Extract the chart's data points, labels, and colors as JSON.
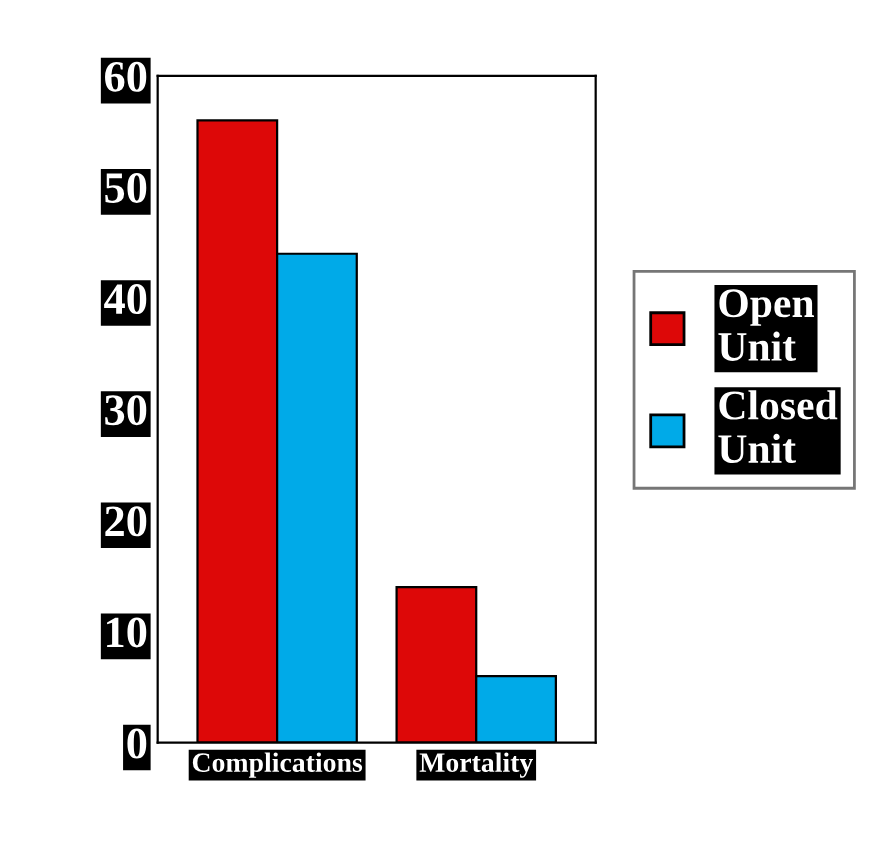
{
  "chart_data": {
    "type": "bar",
    "categories": [
      "Complications",
      "Mortality"
    ],
    "series": [
      {
        "name": "Open Unit",
        "color": "#dd0808",
        "values": [
          56,
          14
        ]
      },
      {
        "name": "Closed Unit",
        "color": "#00aae8",
        "values": [
          44,
          6
        ]
      }
    ],
    "ylim": [
      0,
      60
    ],
    "yticks": [
      0,
      10,
      20,
      30,
      40,
      50,
      60
    ],
    "grid": false,
    "legend": "right"
  }
}
